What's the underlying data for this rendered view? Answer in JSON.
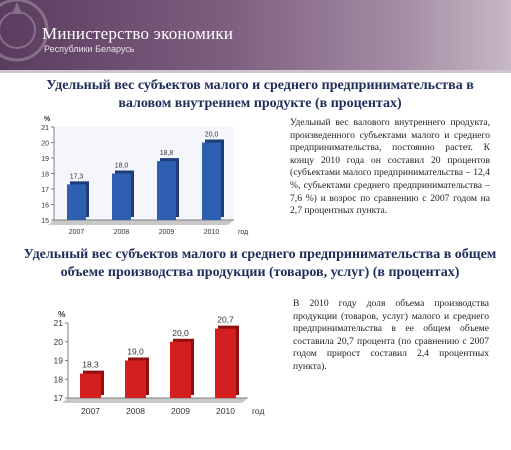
{
  "header": {
    "title": "Министерство экономики",
    "subtitle": "Республики Беларусь"
  },
  "sections": [
    {
      "title": "Удельный вес субъектов малого и среднего предпринимательства в валовом внутреннем продукте (в процентах)",
      "text": "Удельный вес валового внутреннего продукта, произведенного субъектами малого и среднего предпринимательства, постоянно растет. К концу 2010 года он составил 20 процентов (субъектами малого предпринимательства – 12,4 %, субъектами среднего предпринимательства – 7,6 %) и возрос по сравнению с 2007 годом на 2,7 процентных пункта."
    },
    {
      "title": "Удельный вес субъектов малого и среднего предпринимательства в общем объеме производства продукции (товаров, услуг) (в процентах)",
      "text": "В 2010 году доля объема производства продукции (товаров, услуг) малого и среднего предпринимательства в ее общем объеме составила 20,7 процента (по сравнению с 2007 годом прирост составил 2,4 процентных пункта)."
    }
  ],
  "chart_data": [
    {
      "type": "bar",
      "categories": [
        "2007",
        "2008",
        "2009",
        "2010"
      ],
      "values": [
        17.3,
        18.0,
        18.8,
        20.0
      ],
      "value_labels": [
        "17,3",
        "18,0",
        "18,8",
        "20,0"
      ],
      "ylim": [
        15,
        21
      ],
      "yticks": [
        "15",
        "16",
        "17",
        "18",
        "19",
        "20",
        "21"
      ],
      "ylabel": "%",
      "xlabel": "год",
      "bar_color": "#2f5fb0",
      "grid": false
    },
    {
      "type": "bar",
      "categories": [
        "2007",
        "2008",
        "2009",
        "2010"
      ],
      "values": [
        18.3,
        19.0,
        20.0,
        20.7
      ],
      "value_labels": [
        "18,3",
        "19,0",
        "20,0",
        "20,7"
      ],
      "ylim": [
        17,
        21
      ],
      "yticks": [
        "17",
        "18",
        "19",
        "20",
        "21"
      ],
      "ylabel": "%",
      "xlabel": "год",
      "bar_color": "#d31f1f",
      "grid": false
    }
  ]
}
